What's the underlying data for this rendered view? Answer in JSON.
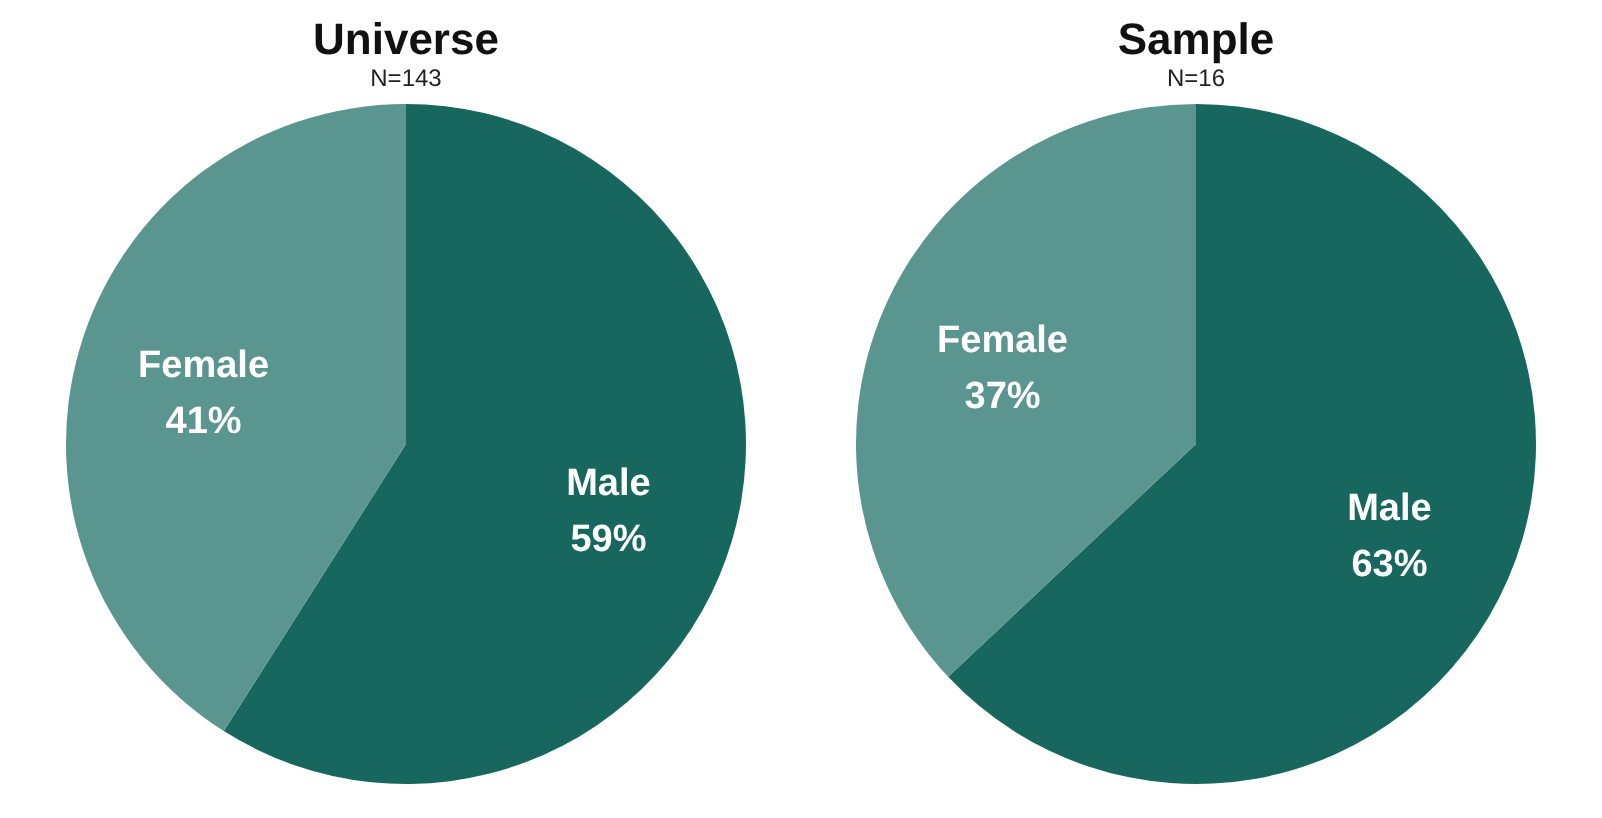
{
  "chart_data": [
    {
      "type": "pie",
      "title": "Universe",
      "subtitle": "N=143",
      "categories": [
        "Male",
        "Female"
      ],
      "values": [
        59,
        41
      ],
      "colors": [
        "#17675f",
        "#5a9590"
      ],
      "value_labels": [
        "59%",
        "41%"
      ]
    },
    {
      "type": "pie",
      "title": "Sample",
      "subtitle": "N=16",
      "categories": [
        "Male",
        "Female"
      ],
      "values": [
        63,
        37
      ],
      "colors": [
        "#17675f",
        "#5a9590"
      ],
      "value_labels": [
        "63%",
        "37%"
      ]
    }
  ]
}
